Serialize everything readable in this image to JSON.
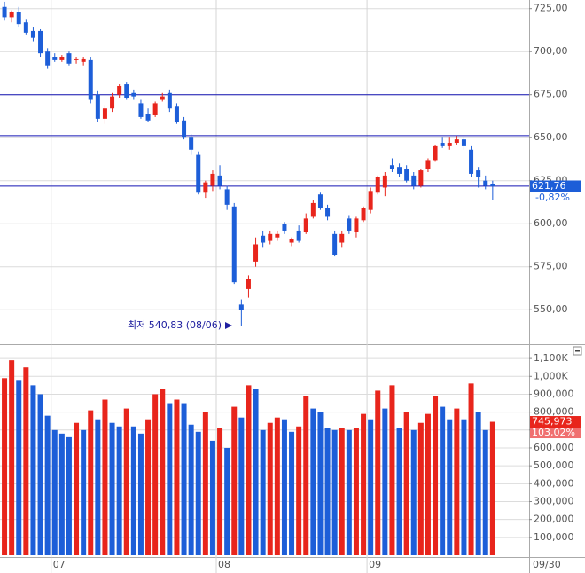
{
  "chart_data": [
    {
      "type": "candlestick",
      "categories": [
        null,
        null,
        null,
        null,
        null,
        null,
        null,
        "07",
        null,
        null,
        null,
        null,
        null,
        null,
        null,
        null,
        null,
        null,
        null,
        null,
        null,
        null,
        null,
        null,
        null,
        null,
        null,
        null,
        null,
        null,
        "08",
        null,
        null,
        null,
        null,
        null,
        null,
        null,
        null,
        null,
        null,
        null,
        null,
        null,
        null,
        null,
        null,
        null,
        null,
        null,
        null,
        "09",
        null,
        null,
        null,
        null,
        null,
        null,
        null,
        null,
        null,
        null,
        null,
        null,
        null,
        null,
        null,
        null,
        null
      ],
      "open": [
        726,
        720,
        723,
        717,
        712,
        712,
        700,
        697,
        695,
        699,
        695,
        694,
        695,
        675,
        661,
        667,
        675,
        681,
        676,
        670,
        664,
        663,
        672,
        676,
        668,
        660,
        650,
        640,
        618,
        622,
        628,
        620,
        610,
        553,
        562,
        578,
        593,
        590,
        592,
        600,
        589,
        596,
        595,
        604,
        617,
        609,
        594,
        589,
        603,
        595,
        602,
        608,
        618,
        621,
        634,
        633,
        632,
        628,
        622,
        632,
        637,
        647,
        645,
        647,
        649,
        643,
        631,
        625,
        623
      ],
      "high": [
        729,
        724,
        726,
        719,
        714,
        713,
        702,
        699,
        698,
        700,
        697,
        697,
        697,
        677,
        669,
        676,
        681,
        682,
        678,
        672,
        667,
        671,
        676,
        678,
        670,
        662,
        652,
        642,
        625,
        631,
        634,
        622,
        612,
        556,
        570,
        592,
        596,
        596,
        596,
        601,
        592,
        599,
        606,
        614,
        618,
        611,
        596,
        596,
        605,
        604,
        610,
        621,
        628,
        630,
        638,
        635,
        634,
        630,
        632,
        638,
        646,
        650,
        650,
        651,
        650,
        645,
        633,
        628,
        625
      ],
      "low": [
        718,
        717,
        714,
        710,
        706,
        697,
        690,
        694,
        694,
        692,
        693,
        692,
        670,
        659,
        658,
        665,
        673,
        672,
        672,
        661,
        659,
        662,
        671,
        665,
        658,
        649,
        640,
        617,
        615,
        619,
        620,
        608,
        565,
        540.83,
        557,
        575,
        586,
        588,
        590,
        594,
        587,
        589,
        594,
        603,
        608,
        602,
        581,
        586,
        594,
        592,
        601,
        606,
        617,
        616,
        630,
        627,
        624,
        620,
        621,
        630,
        636,
        644,
        643,
        646,
        643,
        627,
        621,
        620,
        614
      ],
      "close": [
        720,
        723,
        716,
        711,
        708,
        699,
        692,
        695,
        697,
        693,
        696,
        696,
        672,
        661,
        667,
        674,
        680,
        673,
        674,
        662,
        660,
        670,
        674,
        667,
        659,
        650,
        643,
        618,
        624,
        629,
        622,
        611,
        566,
        550,
        568,
        588,
        589,
        594,
        594,
        596,
        591,
        590,
        603,
        612,
        609,
        604,
        582,
        594,
        596,
        603,
        609,
        619,
        627,
        628,
        632,
        629,
        625,
        622,
        631,
        637,
        645,
        645,
        647,
        649,
        645,
        629,
        627,
        622,
        621.76
      ],
      "up_color": "#e8251c",
      "down_color": "#1d5ed8",
      "ylim": [
        530,
        730
      ],
      "yticks": [
        {
          "value": 550,
          "label": "550,00"
        },
        {
          "value": 575,
          "label": "575,00"
        },
        {
          "value": 600,
          "label": "600,00"
        },
        {
          "value": 625,
          "label": "625,00"
        },
        {
          "value": 650,
          "label": "650,00"
        },
        {
          "value": 675,
          "label": "675,00"
        },
        {
          "value": 700,
          "label": "700,00"
        },
        {
          "value": 725,
          "label": "725,00"
        }
      ],
      "grid": true,
      "trend_lines": [
        675,
        651.2,
        621.8,
        595.2
      ],
      "trend_line_color": "#1414b4",
      "last_price": {
        "value": 621.76,
        "label": "621,76"
      },
      "change_label": "-0,82%",
      "low_annotation": {
        "value": 540.83,
        "label": "최저 540,83 (08/06)"
      },
      "date_label": "09/30"
    },
    {
      "type": "bar",
      "values": [
        990000,
        1090000,
        980000,
        1050000,
        950000,
        900000,
        780000,
        700000,
        680000,
        660000,
        740000,
        700000,
        810000,
        760000,
        870000,
        740000,
        720000,
        820000,
        720000,
        680000,
        760000,
        900000,
        930000,
        850000,
        870000,
        850000,
        730000,
        690000,
        800000,
        640000,
        710000,
        600000,
        830000,
        770000,
        950000,
        930000,
        700000,
        740000,
        770000,
        760000,
        690000,
        720000,
        890000,
        820000,
        800000,
        710000,
        700000,
        710000,
        700000,
        710000,
        790000,
        760000,
        920000,
        820000,
        950000,
        710000,
        800000,
        700000,
        740000,
        790000,
        890000,
        830000,
        760000,
        820000,
        760000,
        960000,
        800000,
        700000,
        745973
      ],
      "up_color": "#e8251c",
      "down_color": "#1d5ed8",
      "ylim": [
        0,
        1170000
      ],
      "yticks": [
        {
          "value": 100000,
          "label": "100,000"
        },
        {
          "value": 200000,
          "label": "200,000"
        },
        {
          "value": 300000,
          "label": "300,000"
        },
        {
          "value": 400000,
          "label": "400,000"
        },
        {
          "value": 500000,
          "label": "500,000"
        },
        {
          "value": 600000,
          "label": "600,000"
        },
        {
          "value": 700000,
          "label": "700,000"
        },
        {
          "value": 800000,
          "label": "800,000"
        },
        {
          "value": 900000,
          "label": "900,000"
        },
        {
          "value": 1000000,
          "label": "1,000K"
        },
        {
          "value": 1100000,
          "label": "1,100K"
        }
      ],
      "grid": true,
      "last_volume": {
        "value": 745973,
        "label": "745,973"
      },
      "ratio_label": "103,02%"
    }
  ]
}
